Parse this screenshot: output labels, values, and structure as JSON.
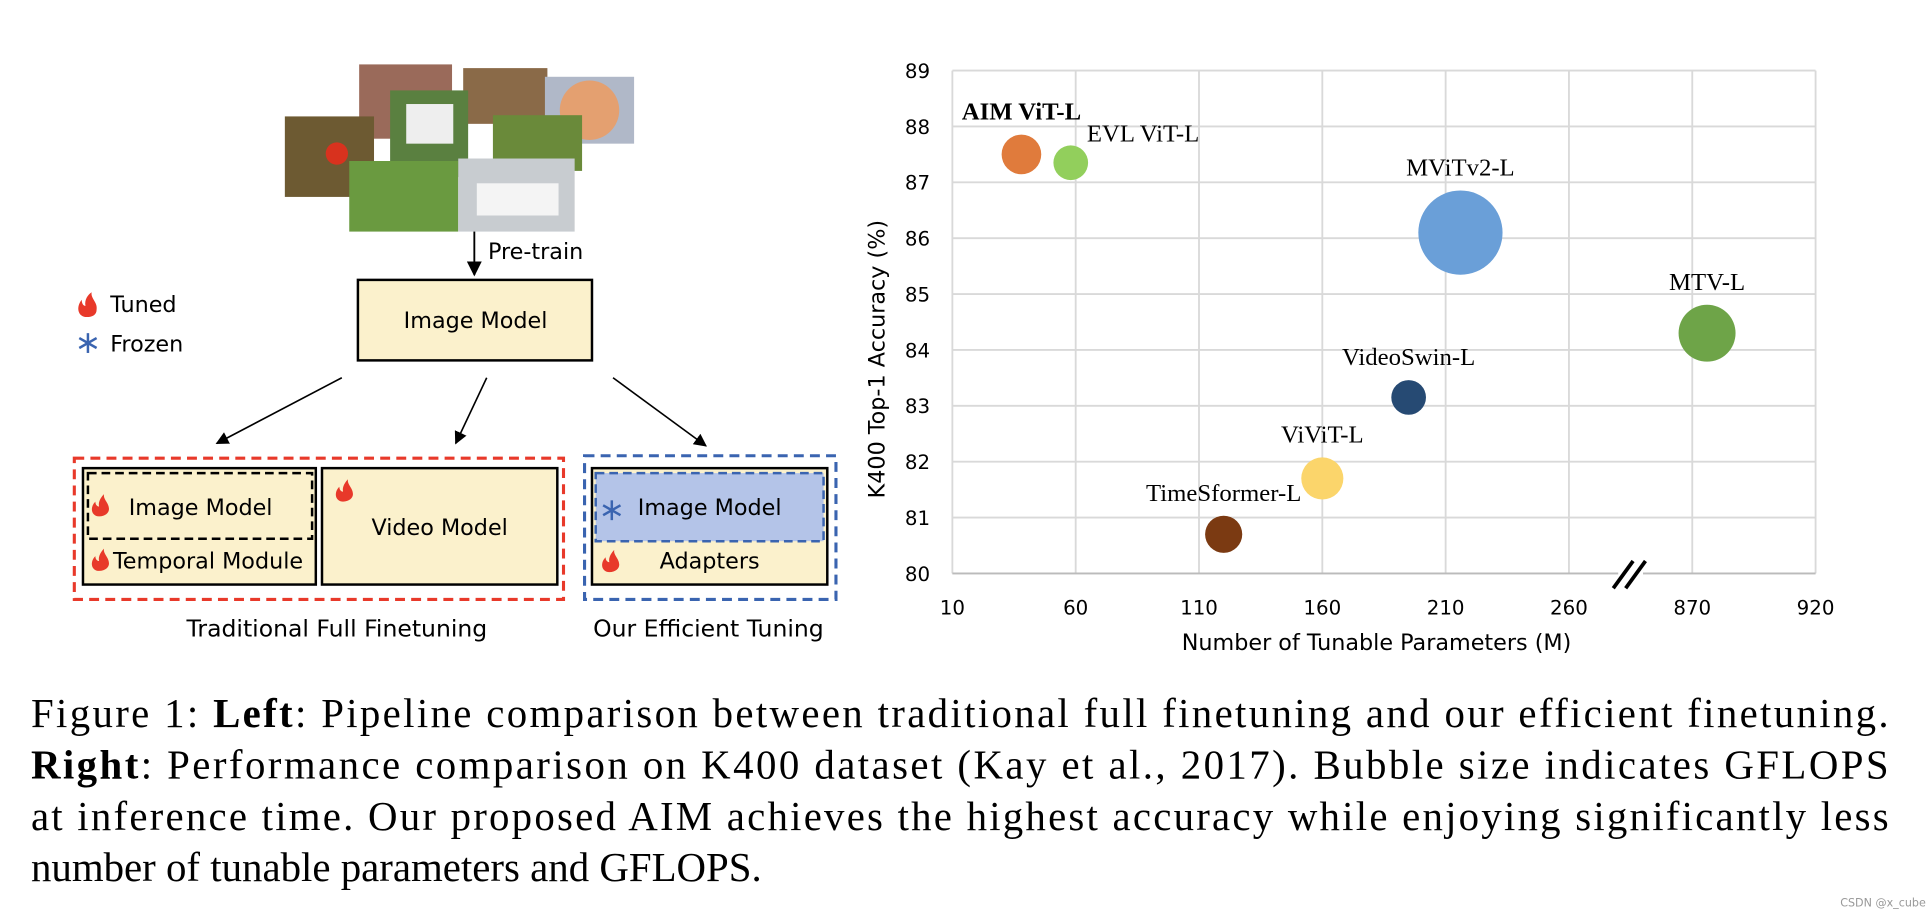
{
  "diagram": {
    "pretrain": "Pre-train",
    "image_model": "Image Model",
    "legend": {
      "tuned": "Tuned",
      "frozen": "Frozen"
    },
    "traditional": {
      "image_model": "Image Model",
      "temporal_module": "Temporal Module",
      "video_model": "Video Model",
      "label": "Traditional Full Finetuning"
    },
    "efficient": {
      "image_model": "Image Model",
      "adapters": "Adapters",
      "label": "Our Efficient Tuning"
    }
  },
  "chart_data": {
    "type": "bubble",
    "xlabel": "Number of Tunable Parameters (M)",
    "ylabel": "K400 Top-1 Accuracy (%)",
    "labels": [
      "AIM ViT-L",
      "EVL ViT-L",
      "MViTv2-L",
      "MTV-L",
      "VideoSwin-L",
      "ViViT-L",
      "TimeSformer-L"
    ],
    "label_bold": [
      true,
      false,
      false,
      false,
      false,
      false,
      false
    ],
    "x": [
      38,
      58,
      216,
      876,
      195,
      160,
      120
    ],
    "values": [
      87.5,
      87.35,
      86.1,
      84.3,
      83.15,
      81.7,
      80.7
    ],
    "sizes": [
      256,
      196,
      1156,
      529,
      196,
      289,
      225
    ],
    "colors": [
      "#e07b3c",
      "#92cf5c",
      "#6a9fd8",
      "#6ea448",
      "#264a73",
      "#fbd56b",
      "#7b3a12"
    ],
    "xlim": [
      10,
      920
    ],
    "xticks": [
      10,
      60,
      110,
      160,
      210,
      260,
      870,
      920
    ],
    "ylim": [
      80,
      89
    ],
    "yticks": [
      80,
      81,
      82,
      83,
      84,
      85,
      86,
      87,
      88,
      89
    ],
    "grid": true,
    "x_axis_break": true
  },
  "caption": {
    "lines": [
      [
        {
          "text": "Figure 1: ",
          "bold": false
        },
        {
          "text": "Left",
          "bold": true
        },
        {
          "text": ": Pipeline comparison between traditional full finetuning and our efficient finetuning.",
          "bold": false
        }
      ],
      [
        {
          "text": "Right",
          "bold": true
        },
        {
          "text": ": Performance comparison on K400 dataset (Kay et al., 2017). Bubble size indicates GFLOPS",
          "bold": false
        }
      ],
      [
        {
          "text": "at inference time. Our proposed AIM achieves the highest accuracy while enjoying significantly less",
          "bold": false
        }
      ],
      [
        {
          "text": "number of tunable parameters and GFLOPS.",
          "bold": false
        }
      ]
    ]
  },
  "watermark": "CSDN @x_cube"
}
